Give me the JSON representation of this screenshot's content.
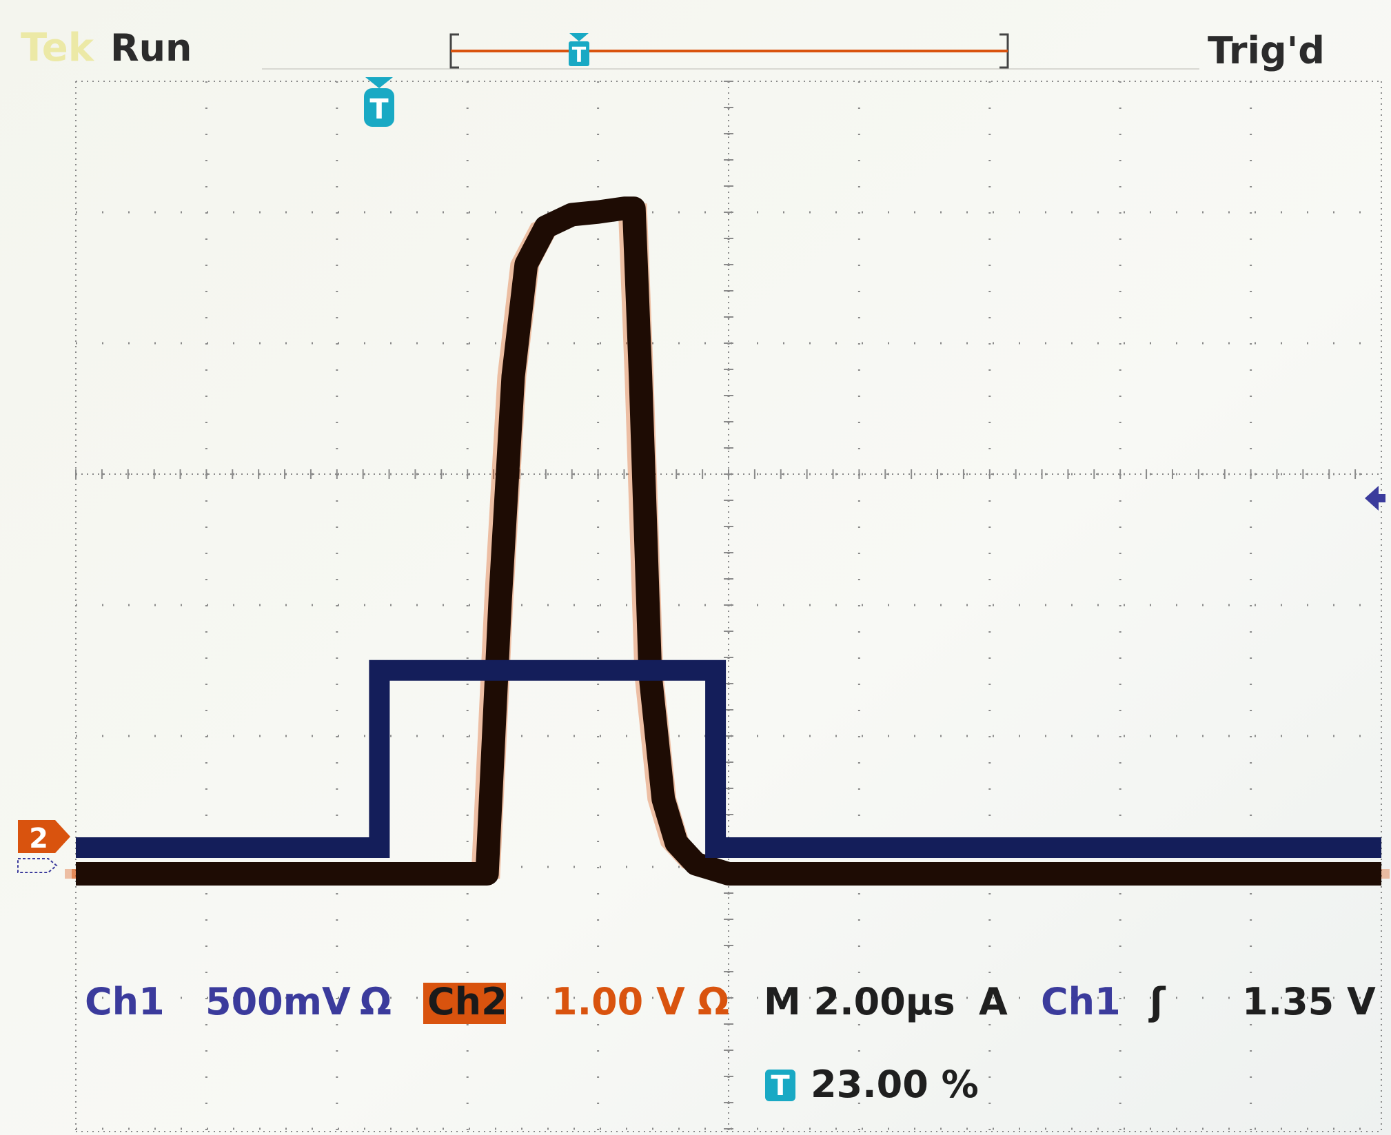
{
  "header": {
    "brand": "Tek",
    "run_state": "Run",
    "trigger_status": "Trig'd"
  },
  "markers": {
    "trigger_marker": "T",
    "ch2_ground": "2"
  },
  "readouts": {
    "ch1_label": "Ch1",
    "ch1_scale": "500mV",
    "ch1_coupling": "Ω",
    "ch2_label": "Ch2",
    "ch2_scale": "1.00 V",
    "ch2_coupling": "Ω",
    "timebase": "M 2.00µs",
    "trigger_mode": "A",
    "trigger_source": "Ch1",
    "trigger_slope": "ʃ",
    "trigger_level": "1.35 V",
    "trigger_position": "23.00 %"
  },
  "colors": {
    "ch1": "#141e5a",
    "ch2": "#1e0c04",
    "ch2_persistence": "#d9530e",
    "grid": "#8a8a8a",
    "trigger_marker": "#19a9c4",
    "background": "#f7f8f4"
  },
  "chart_data": {
    "type": "line",
    "x_unit": "µs",
    "x_divisions": 10,
    "y_divisions": 8,
    "xlim": [
      0,
      20
    ],
    "series": [
      {
        "name": "Ch1",
        "volts_per_div": 0.5,
        "x": [
          0,
          4.65,
          4.65,
          9.8,
          9.8,
          20
        ],
        "y": [
          0.0,
          0.0,
          1.8,
          1.8,
          0.0,
          0.0
        ]
      },
      {
        "name": "Ch2",
        "volts_per_div": 1.0,
        "x": [
          0,
          6.3,
          6.5,
          6.7,
          6.9,
          7.2,
          7.6,
          8.0,
          8.4,
          8.55,
          8.65,
          8.8,
          9.0,
          9.2,
          9.5,
          10.0,
          20
        ],
        "y": [
          0.0,
          0.0,
          2.2,
          4.0,
          4.9,
          5.2,
          5.3,
          5.32,
          5.35,
          5.35,
          4.0,
          1.6,
          0.6,
          0.25,
          0.08,
          0.0,
          0.0
        ]
      }
    ]
  }
}
